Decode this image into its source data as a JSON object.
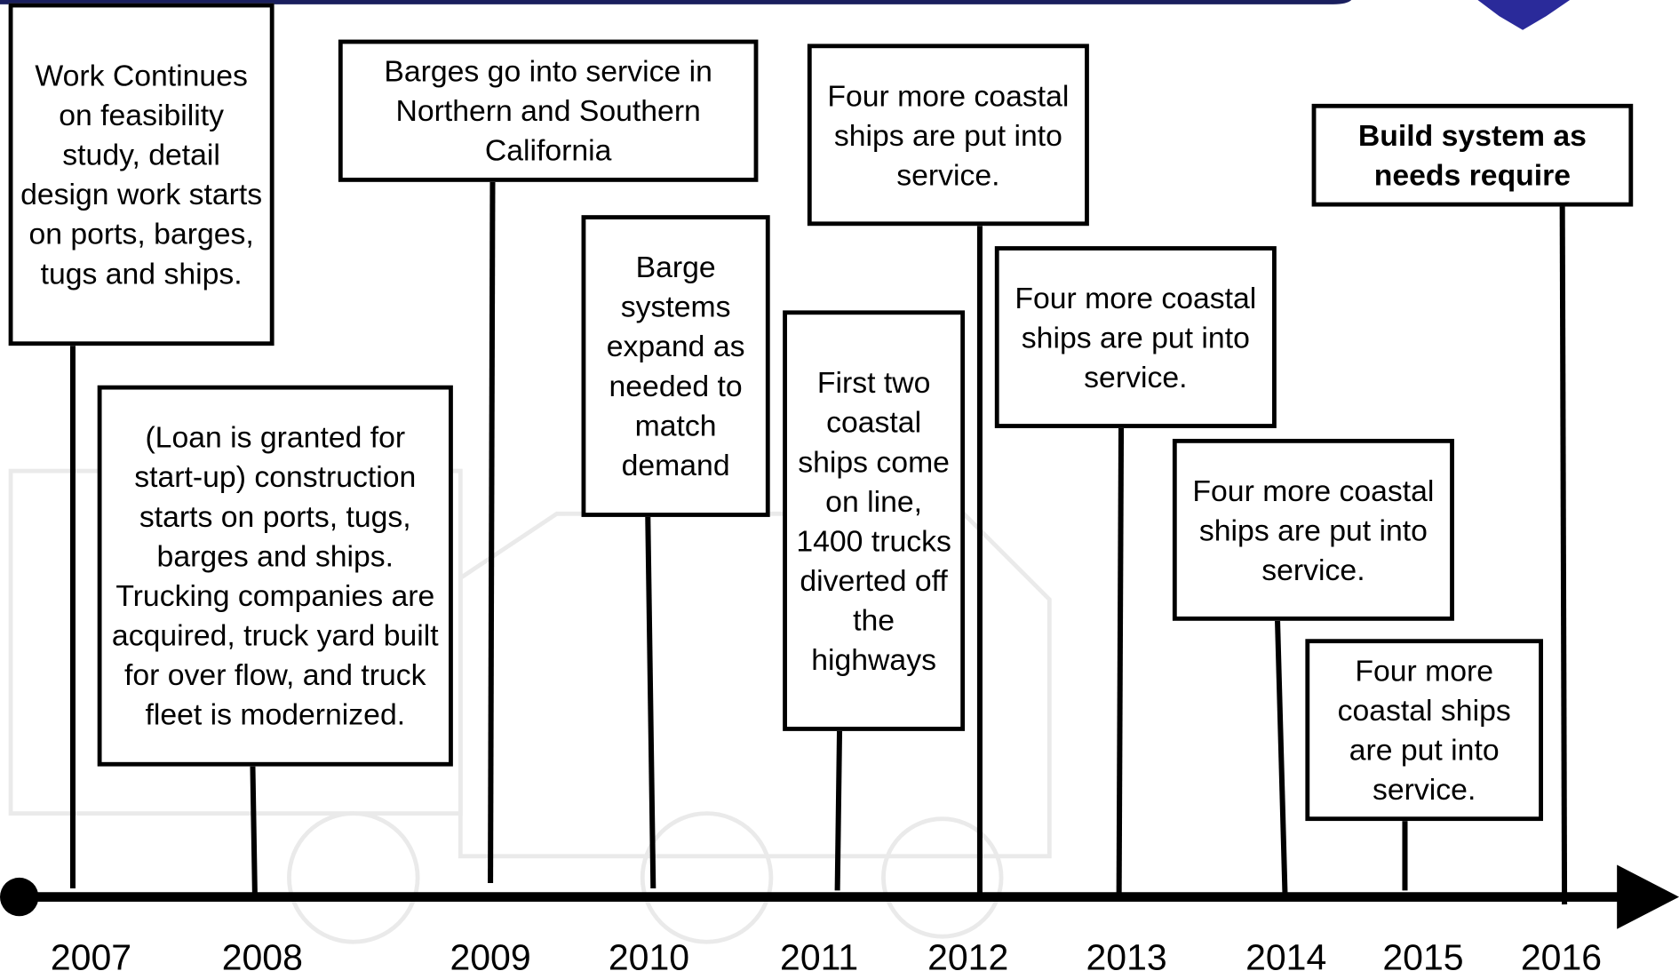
{
  "timeline": {
    "years": [
      "2007",
      "2008",
      "2009",
      "2010",
      "2011",
      "2012",
      "2013",
      "2014",
      "2015",
      "2016"
    ],
    "events": [
      {
        "text": "Work Continues on feasibility study, detail design work starts on ports, barges, tugs and ships."
      },
      {
        "text": "(Loan is granted for start-up) construction starts on ports, tugs, barges and ships. Trucking companies are acquired, truck yard built for over flow, and truck fleet is modernized."
      },
      {
        "text": "Barges go into service in Northern and Southern California"
      },
      {
        "text": "Barge systems expand as needed to match demand"
      },
      {
        "text": "First two coastal ships come on line, 1400 trucks diverted off the highways"
      },
      {
        "text": "Four more coastal ships are put into service."
      },
      {
        "text": "Four more coastal ships are put into service."
      },
      {
        "text": "Four more coastal ships are put into service."
      },
      {
        "text": "Four more coastal ships are put into service."
      },
      {
        "text": "Build system as needs require"
      }
    ]
  }
}
